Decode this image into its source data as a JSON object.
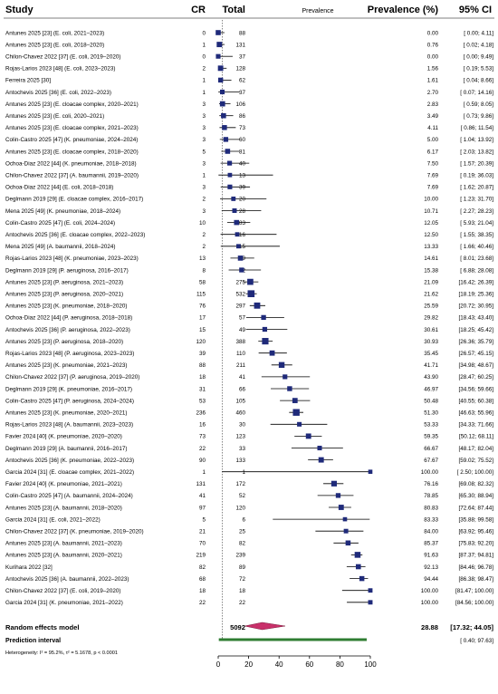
{
  "header": {
    "study": "Study",
    "cr": "CR",
    "total": "Total",
    "prevalence": "Prevalence",
    "prevalence_pct": "Prevalence (%)",
    "ci": "95% CI"
  },
  "colors": {
    "square": "#1f2a7a",
    "diamond": "#c8306a",
    "prediction": "#2f7d32",
    "reference": "#555555"
  },
  "chart_data": {
    "type": "forest",
    "xlim": [
      0,
      100
    ],
    "x_ticks": [
      "0",
      "20",
      "40",
      "60",
      "80",
      "100"
    ],
    "reference_line": 2.7,
    "studies": [
      {
        "label": "Antunes 2025 [23] (E. coli, 2021–2023)",
        "cr": "0",
        "total": "88",
        "prev": 0.0,
        "lo": 0.0,
        "hi": 4.11,
        "prev_text": "0.00",
        "ci_text": "[ 0.00;  4.11]"
      },
      {
        "label": "Antunes 2025 [23] (E. coli, 2018–2020)",
        "cr": "1",
        "total": "131",
        "prev": 0.76,
        "lo": 0.02,
        "hi": 4.18,
        "prev_text": "0.76",
        "ci_text": "[ 0.02;  4.18]"
      },
      {
        "label": "Chilon-Chavez 2022 [37] (E. coli, 2019–2020)",
        "cr": "0",
        "total": "37",
        "prev": 0.0,
        "lo": 0.0,
        "hi": 9.49,
        "prev_text": "0.00",
        "ci_text": "[ 0.00;  9.49]"
      },
      {
        "label": "Rojas-Larios 2023 [48] (E. coli, 2023–2023)",
        "cr": "2",
        "total": "128",
        "prev": 1.56,
        "lo": 0.19,
        "hi": 5.53,
        "prev_text": "1.56",
        "ci_text": "[ 0.19;  5.53]"
      },
      {
        "label": "Ferreira 2025 [30]",
        "cr": "1",
        "total": "62",
        "prev": 1.61,
        "lo": 0.04,
        "hi": 8.66,
        "prev_text": "1.61",
        "ci_text": "[ 0.04;  8.66]"
      },
      {
        "label": "Antochevis 2025 [36] (E. coli, 2022–2023)",
        "cr": "1",
        "total": "37",
        "prev": 2.7,
        "lo": 0.07,
        "hi": 14.16,
        "prev_text": "2.70",
        "ci_text": "[ 0.07; 14.16]"
      },
      {
        "label": "Antunes 2025 [23] (E. cloacae complex, 2020–2021)",
        "cr": "3",
        "total": "106",
        "prev": 2.83,
        "lo": 0.59,
        "hi": 8.05,
        "prev_text": "2.83",
        "ci_text": "[ 0.59;  8.05]"
      },
      {
        "label": "Antunes 2025 [23] (E. coli, 2020–2021)",
        "cr": "3",
        "total": "86",
        "prev": 3.49,
        "lo": 0.73,
        "hi": 9.86,
        "prev_text": "3.49",
        "ci_text": "[ 0.73;  9.86]"
      },
      {
        "label": "Antunes 2025 [23] (E. cloacae complex, 2021–2023)",
        "cr": "3",
        "total": "73",
        "prev": 4.11,
        "lo": 0.86,
        "hi": 11.54,
        "prev_text": "4.11",
        "ci_text": "[ 0.86; 11.54]"
      },
      {
        "label": "Colin-Castro 2025 [47] (K. pneumoniae, 2024–2024)",
        "cr": "3",
        "total": "60",
        "prev": 5.0,
        "lo": 1.04,
        "hi": 13.92,
        "prev_text": "5.00",
        "ci_text": "[ 1.04; 13.92]"
      },
      {
        "label": "Antunes 2025 [23] (E. cloacae complex, 2018–2020)",
        "cr": "5",
        "total": "81",
        "prev": 6.17,
        "lo": 2.03,
        "hi": 13.82,
        "prev_text": "6.17",
        "ci_text": "[ 2.03; 13.82]"
      },
      {
        "label": "Ochoa-Diaz 2022 [44] (K. pneumoniae, 2018–2018)",
        "cr": "3",
        "total": "40",
        "prev": 7.5,
        "lo": 1.57,
        "hi": 20.39,
        "prev_text": "7.50",
        "ci_text": "[ 1.57; 20.39]"
      },
      {
        "label": "Chilon-Chavez 2022 [37] (A. baumannii, 2019–2020)",
        "cr": "1",
        "total": "13",
        "prev": 7.69,
        "lo": 0.19,
        "hi": 36.03,
        "prev_text": "7.69",
        "ci_text": "[ 0.19; 36.03]"
      },
      {
        "label": "Ochoa-Diaz 2022 [44] (E. coli, 2018–2018)",
        "cr": "3",
        "total": "39",
        "prev": 7.69,
        "lo": 1.62,
        "hi": 20.87,
        "prev_text": "7.69",
        "ci_text": "[ 1.62; 20.87]"
      },
      {
        "label": "Deglmann 2019 [29] (E. cloacae complex, 2016–2017)",
        "cr": "2",
        "total": "20",
        "prev": 10.0,
        "lo": 1.23,
        "hi": 31.7,
        "prev_text": "10.00",
        "ci_text": "[ 1.23; 31.70]"
      },
      {
        "label": "Mena 2025 [49] (K. pneumoniae, 2018–2024)",
        "cr": "3",
        "total": "28",
        "prev": 10.71,
        "lo": 2.27,
        "hi": 28.23,
        "prev_text": "10.71",
        "ci_text": "[ 2.27; 28.23]"
      },
      {
        "label": "Colin-Castro 2025 [47] (E. coli, 2024–2024)",
        "cr": "10",
        "total": "83",
        "prev": 12.05,
        "lo": 5.93,
        "hi": 21.04,
        "prev_text": "12.05",
        "ci_text": "[ 5.93; 21.04]"
      },
      {
        "label": "Antochevis 2025 [36] (E. cloacae complex, 2022–2023)",
        "cr": "2",
        "total": "16",
        "prev": 12.5,
        "lo": 1.55,
        "hi": 38.35,
        "prev_text": "12.50",
        "ci_text": "[ 1.55; 38.35]"
      },
      {
        "label": "Mena 2025 [49] (A. baumannii, 2018–2024)",
        "cr": "2",
        "total": "15",
        "prev": 13.33,
        "lo": 1.66,
        "hi": 40.46,
        "prev_text": "13.33",
        "ci_text": "[ 1.66; 40.46]"
      },
      {
        "label": "Rojas-Larios 2023 [48] (K. pneumoniae, 2023–2023)",
        "cr": "13",
        "total": "89",
        "prev": 14.61,
        "lo": 8.01,
        "hi": 23.68,
        "prev_text": "14.61",
        "ci_text": "[ 8.01; 23.68]"
      },
      {
        "label": "Deglmann 2019 [29] (P. aeruginosa, 2016–2017)",
        "cr": "8",
        "total": "52",
        "prev": 15.38,
        "lo": 6.88,
        "hi": 28.08,
        "prev_text": "15.38",
        "ci_text": "[ 6.88; 28.08]"
      },
      {
        "label": "Antunes 2025 [23] (P. aeruginosa, 2021–2023)",
        "cr": "58",
        "total": "275",
        "prev": 21.09,
        "lo": 16.42,
        "hi": 26.39,
        "prev_text": "21.09",
        "ci_text": "[16.42; 26.39]"
      },
      {
        "label": "Antunes 2025 [23] (P. aeruginosa, 2020–2021)",
        "cr": "115",
        "total": "532",
        "prev": 21.62,
        "lo": 18.19,
        "hi": 25.36,
        "prev_text": "21.62",
        "ci_text": "[18.19; 25.36]"
      },
      {
        "label": "Antunes 2025 [23] (K. pneumoniae, 2018–2020)",
        "cr": "76",
        "total": "297",
        "prev": 25.59,
        "lo": 20.72,
        "hi": 30.95,
        "prev_text": "25.59",
        "ci_text": "[20.72; 30.95]"
      },
      {
        "label": "Ochoa-Diaz 2022 [44] (P. aeruginosa, 2018–2018)",
        "cr": "17",
        "total": "57",
        "prev": 29.82,
        "lo": 18.43,
        "hi": 43.4,
        "prev_text": "29.82",
        "ci_text": "[18.43; 43.40]"
      },
      {
        "label": "Antochevis 2025 [36] (P. aeruginosa, 2022–2023)",
        "cr": "15",
        "total": "49",
        "prev": 30.61,
        "lo": 18.25,
        "hi": 45.42,
        "prev_text": "30.61",
        "ci_text": "[18.25; 45.42]"
      },
      {
        "label": "Antunes 2025 [23] (P. aeruginosa, 2018–2020)",
        "cr": "120",
        "total": "388",
        "prev": 30.93,
        "lo": 26.36,
        "hi": 35.79,
        "prev_text": "30.93",
        "ci_text": "[26.36; 35.79]"
      },
      {
        "label": "Rojas-Larios 2023 [48] (P. aeruginosa, 2023–2023)",
        "cr": "39",
        "total": "110",
        "prev": 35.45,
        "lo": 26.57,
        "hi": 45.15,
        "prev_text": "35.45",
        "ci_text": "[26.57; 45.15]"
      },
      {
        "label": "Antunes 2025 [23] (K. pneumoniae, 2021–2023)",
        "cr": "88",
        "total": "211",
        "prev": 41.71,
        "lo": 34.98,
        "hi": 48.67,
        "prev_text": "41.71",
        "ci_text": "[34.98; 48.67]"
      },
      {
        "label": "Chilon-Chavez 2022 [37] (P. aeruginosa, 2019–2020)",
        "cr": "18",
        "total": "41",
        "prev": 43.9,
        "lo": 28.47,
        "hi": 60.25,
        "prev_text": "43.90",
        "ci_text": "[28.47; 60.25]"
      },
      {
        "label": "Deglmann 2019 [29] (K. pneumoniae, 2016–2017)",
        "cr": "31",
        "total": "66",
        "prev": 46.97,
        "lo": 34.56,
        "hi": 59.66,
        "prev_text": "46.97",
        "ci_text": "[34.56; 59.66]"
      },
      {
        "label": "Colin-Castro 2025 [47] (P. aeruginosa, 2024–2024)",
        "cr": "53",
        "total": "105",
        "prev": 50.48,
        "lo": 40.55,
        "hi": 60.38,
        "prev_text": "50.48",
        "ci_text": "[40.55; 60.38]"
      },
      {
        "label": "Antunes 2025 [23] (K. pneumoniae, 2020–2021)",
        "cr": "236",
        "total": "460",
        "prev": 51.3,
        "lo": 46.63,
        "hi": 55.96,
        "prev_text": "51.30",
        "ci_text": "[46.63; 55.96]"
      },
      {
        "label": "Rojas-Larios 2023 [48] (A. baumannii, 2023–2023)",
        "cr": "16",
        "total": "30",
        "prev": 53.33,
        "lo": 34.33,
        "hi": 71.66,
        "prev_text": "53.33",
        "ci_text": "[34.33; 71.66]"
      },
      {
        "label": "Favier 2024 [40] (K. pneumoniae, 2020–2020)",
        "cr": "73",
        "total": "123",
        "prev": 59.35,
        "lo": 50.12,
        "hi": 68.11,
        "prev_text": "59.35",
        "ci_text": "[50.12; 68.11]"
      },
      {
        "label": "Deglmann 2019 [29] (A. baumannii, 2016–2017)",
        "cr": "22",
        "total": "33",
        "prev": 66.67,
        "lo": 48.17,
        "hi": 82.04,
        "prev_text": "66.67",
        "ci_text": "[48.17; 82.04]"
      },
      {
        "label": "Antochevis 2025 [36] (K. pneumoniae, 2022–2023)",
        "cr": "90",
        "total": "133",
        "prev": 67.67,
        "lo": 59.02,
        "hi": 75.52,
        "prev_text": "67.67",
        "ci_text": "[59.02; 75.52]"
      },
      {
        "label": "Garcia 2024 [31] (E. cloacae complex, 2021–2022)",
        "cr": "1",
        "total": "1",
        "prev": 100.0,
        "lo": 2.5,
        "hi": 100.0,
        "prev_text": "100.00",
        "ci_text": "[ 2.50; 100.00]"
      },
      {
        "label": "Favier 2024 [40] (K. pneumoniae, 2021–2021)",
        "cr": "131",
        "total": "172",
        "prev": 76.16,
        "lo": 69.08,
        "hi": 82.32,
        "prev_text": "76.16",
        "ci_text": "[69.08; 82.32]"
      },
      {
        "label": "Colin-Castro 2025 [47] (A. baumannii, 2024–2024)",
        "cr": "41",
        "total": "52",
        "prev": 78.85,
        "lo": 65.3,
        "hi": 88.94,
        "prev_text": "78.85",
        "ci_text": "[65.30; 88.94]"
      },
      {
        "label": "Antunes 2025 [23] (A. baumannii, 2018–2020)",
        "cr": "97",
        "total": "120",
        "prev": 80.83,
        "lo": 72.64,
        "hi": 87.44,
        "prev_text": "80.83",
        "ci_text": "[72.64; 87.44]"
      },
      {
        "label": "Garcia 2024 [31] (E. coli, 2021–2022)",
        "cr": "5",
        "total": "6",
        "prev": 83.33,
        "lo": 35.88,
        "hi": 99.58,
        "prev_text": "83.33",
        "ci_text": "[35.88; 99.58]"
      },
      {
        "label": "Chilon-Chavez 2022 [37] (K. pneumoniae, 2019–2020)",
        "cr": "21",
        "total": "25",
        "prev": 84.0,
        "lo": 63.92,
        "hi": 95.46,
        "prev_text": "84.00",
        "ci_text": "[63.92; 95.46]"
      },
      {
        "label": "Antunes 2025 [23] (A. baumannii, 2021–2023)",
        "cr": "70",
        "total": "82",
        "prev": 85.37,
        "lo": 75.83,
        "hi": 92.2,
        "prev_text": "85.37",
        "ci_text": "[75.83; 92.20]"
      },
      {
        "label": "Antunes 2025 [23] (A. baumannii, 2020–2021)",
        "cr": "219",
        "total": "239",
        "prev": 91.63,
        "lo": 87.37,
        "hi": 94.81,
        "prev_text": "91.63",
        "ci_text": "[87.37; 94.81]"
      },
      {
        "label": "Kurihara 2022 [32]",
        "cr": "82",
        "total": "89",
        "prev": 92.13,
        "lo": 84.46,
        "hi": 96.78,
        "prev_text": "92.13",
        "ci_text": "[84.46; 96.78]"
      },
      {
        "label": "Antochevis 2025 [36] (A. baumannii, 2022–2023)",
        "cr": "68",
        "total": "72",
        "prev": 94.44,
        "lo": 86.38,
        "hi": 98.47,
        "prev_text": "94.44",
        "ci_text": "[86.38; 98.47]"
      },
      {
        "label": "Chilon-Chavez 2022 [37] (E. coli, 2019–2020)",
        "cr": "18",
        "total": "18",
        "prev": 100.0,
        "lo": 81.47,
        "hi": 100.0,
        "prev_text": "100.00",
        "ci_text": "[81.47; 100.00]"
      },
      {
        "label": "Garcia 2024 [31] (K. pneumoniae, 2021–2022)",
        "cr": "22",
        "total": "22",
        "prev": 100.0,
        "lo": 84.56,
        "hi": 100.0,
        "prev_text": "100.00",
        "ci_text": "[84.56; 100.00]"
      }
    ],
    "summary": {
      "label": "Random effects model",
      "total": "5092",
      "prev": 28.88,
      "lo": 17.32,
      "hi": 44.05,
      "prev_text": "28.88",
      "ci_text": "[17.32; 44.05]"
    },
    "prediction": {
      "label": "Prediction interval",
      "lo": 0.4,
      "hi": 97.63,
      "ci_text": "[ 0.40; 97.63]"
    },
    "heterogeneity": "Heterogeneity: I² = 95.2%, τ² = 5.1678, p < 0.0001"
  }
}
